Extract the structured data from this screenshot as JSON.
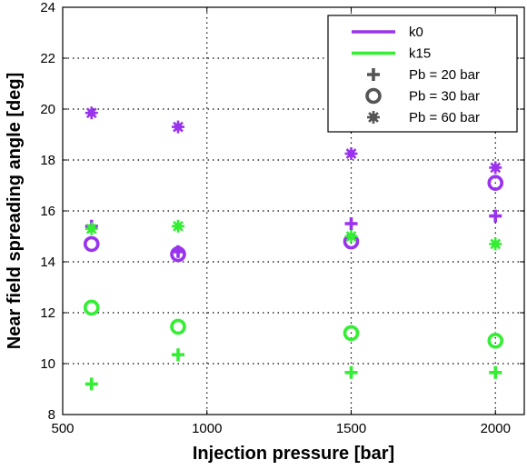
{
  "chart_data": {
    "type": "scatter",
    "xlabel": "Injection pressure [bar]",
    "ylabel": "Near field spreading angle [deg]",
    "xlim": [
      500,
      2100
    ],
    "ylim": [
      8,
      24
    ],
    "xticks": [
      500,
      1000,
      1500,
      2000
    ],
    "yticks": [
      8,
      10,
      12,
      14,
      16,
      18,
      20,
      22,
      24
    ],
    "grid": true,
    "legend_position": "top-right",
    "legend": [
      {
        "label": "k0",
        "kind": "line",
        "color": "#9933ee"
      },
      {
        "label": "k15",
        "kind": "line",
        "color": "#33ee33"
      },
      {
        "label": "Pb = 20 bar",
        "kind": "marker",
        "marker": "plus"
      },
      {
        "label": "Pb = 30 bar",
        "kind": "marker",
        "marker": "circle"
      },
      {
        "label": "Pb = 60 bar",
        "kind": "marker",
        "marker": "asterisk"
      }
    ],
    "series": [
      {
        "name": "k0, Pb = 20 bar",
        "color": "#9933ee",
        "marker": "plus",
        "x": [
          600,
          900,
          1500,
          2000
        ],
        "y": [
          15.4,
          14.4,
          15.5,
          15.8
        ]
      },
      {
        "name": "k0, Pb = 30 bar",
        "color": "#9933ee",
        "marker": "circle",
        "x": [
          600,
          900,
          1500,
          2000
        ],
        "y": [
          14.7,
          14.3,
          14.8,
          17.1
        ]
      },
      {
        "name": "k0, Pb = 60 bar",
        "color": "#9933ee",
        "marker": "asterisk",
        "x": [
          600,
          900,
          1500,
          2000
        ],
        "y": [
          19.85,
          19.3,
          18.25,
          17.7
        ]
      },
      {
        "name": "k15, Pb = 20 bar",
        "color": "#33ee33",
        "marker": "plus",
        "x": [
          600,
          900,
          1500,
          2000
        ],
        "y": [
          9.2,
          10.35,
          9.65,
          9.65
        ]
      },
      {
        "name": "k15, Pb = 30 bar",
        "color": "#33ee33",
        "marker": "circle",
        "x": [
          600,
          900,
          1500,
          2000
        ],
        "y": [
          12.2,
          11.45,
          11.2,
          10.9
        ]
      },
      {
        "name": "k15, Pb = 60 bar",
        "color": "#33ee33",
        "marker": "asterisk",
        "x": [
          600,
          900,
          1500,
          2000
        ],
        "y": [
          15.3,
          15.4,
          15.0,
          14.7
        ]
      }
    ]
  }
}
